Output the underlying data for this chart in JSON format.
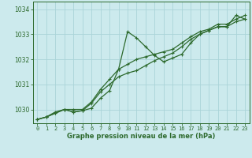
{
  "background_color": "#cceaed",
  "grid_color": "#aad4d8",
  "line_color": "#2d6a2d",
  "xlabel": "Graphe pression niveau de la mer (hPa)",
  "xlim": [
    -0.5,
    23.5
  ],
  "ylim": [
    1029.45,
    1034.3
  ],
  "yticks": [
    1030,
    1031,
    1032,
    1033,
    1034
  ],
  "xticks": [
    0,
    1,
    2,
    3,
    4,
    5,
    6,
    7,
    8,
    9,
    10,
    11,
    12,
    13,
    14,
    15,
    16,
    17,
    18,
    19,
    20,
    21,
    22,
    23
  ],
  "series1_x": [
    0,
    1,
    2,
    3,
    4,
    5,
    6,
    7,
    8,
    9,
    10,
    11,
    12,
    13,
    14,
    15,
    16,
    17,
    18,
    19,
    20,
    21,
    22,
    23
  ],
  "series1_y": [
    1029.6,
    1029.7,
    1029.85,
    1030.0,
    1029.9,
    1029.95,
    1030.05,
    1030.45,
    1030.75,
    1031.6,
    1033.1,
    1032.85,
    1032.5,
    1032.15,
    1031.9,
    1032.05,
    1032.2,
    1032.65,
    1033.0,
    1033.15,
    1033.3,
    1033.3,
    1033.75,
    1033.6
  ],
  "series2_x": [
    0,
    1,
    2,
    3,
    4,
    5,
    6,
    7,
    8,
    9,
    10,
    11,
    12,
    13,
    14,
    15,
    16,
    17,
    18,
    19,
    20,
    21,
    22,
    23
  ],
  "series2_y": [
    1029.6,
    1029.7,
    1029.85,
    1030.0,
    1029.9,
    1029.95,
    1030.25,
    1030.7,
    1031.0,
    1031.3,
    1031.45,
    1031.55,
    1031.75,
    1031.95,
    1032.1,
    1032.25,
    1032.5,
    1032.8,
    1033.0,
    1033.15,
    1033.3,
    1033.3,
    1033.5,
    1033.6
  ],
  "series3_x": [
    0,
    1,
    2,
    3,
    4,
    5,
    6,
    7,
    8,
    9,
    10,
    11,
    12,
    13,
    14,
    15,
    16,
    17,
    18,
    19,
    20,
    21,
    22,
    23
  ],
  "series3_y": [
    1029.6,
    1029.7,
    1029.9,
    1030.0,
    1030.0,
    1030.0,
    1030.3,
    1030.8,
    1031.2,
    1031.6,
    1031.8,
    1032.0,
    1032.1,
    1032.2,
    1032.3,
    1032.4,
    1032.65,
    1032.9,
    1033.1,
    1033.2,
    1033.4,
    1033.4,
    1033.6,
    1033.75
  ],
  "tick_fontsize": 5.0,
  "xlabel_fontsize": 6.0,
  "marker_size": 2.0,
  "line_width": 0.9
}
